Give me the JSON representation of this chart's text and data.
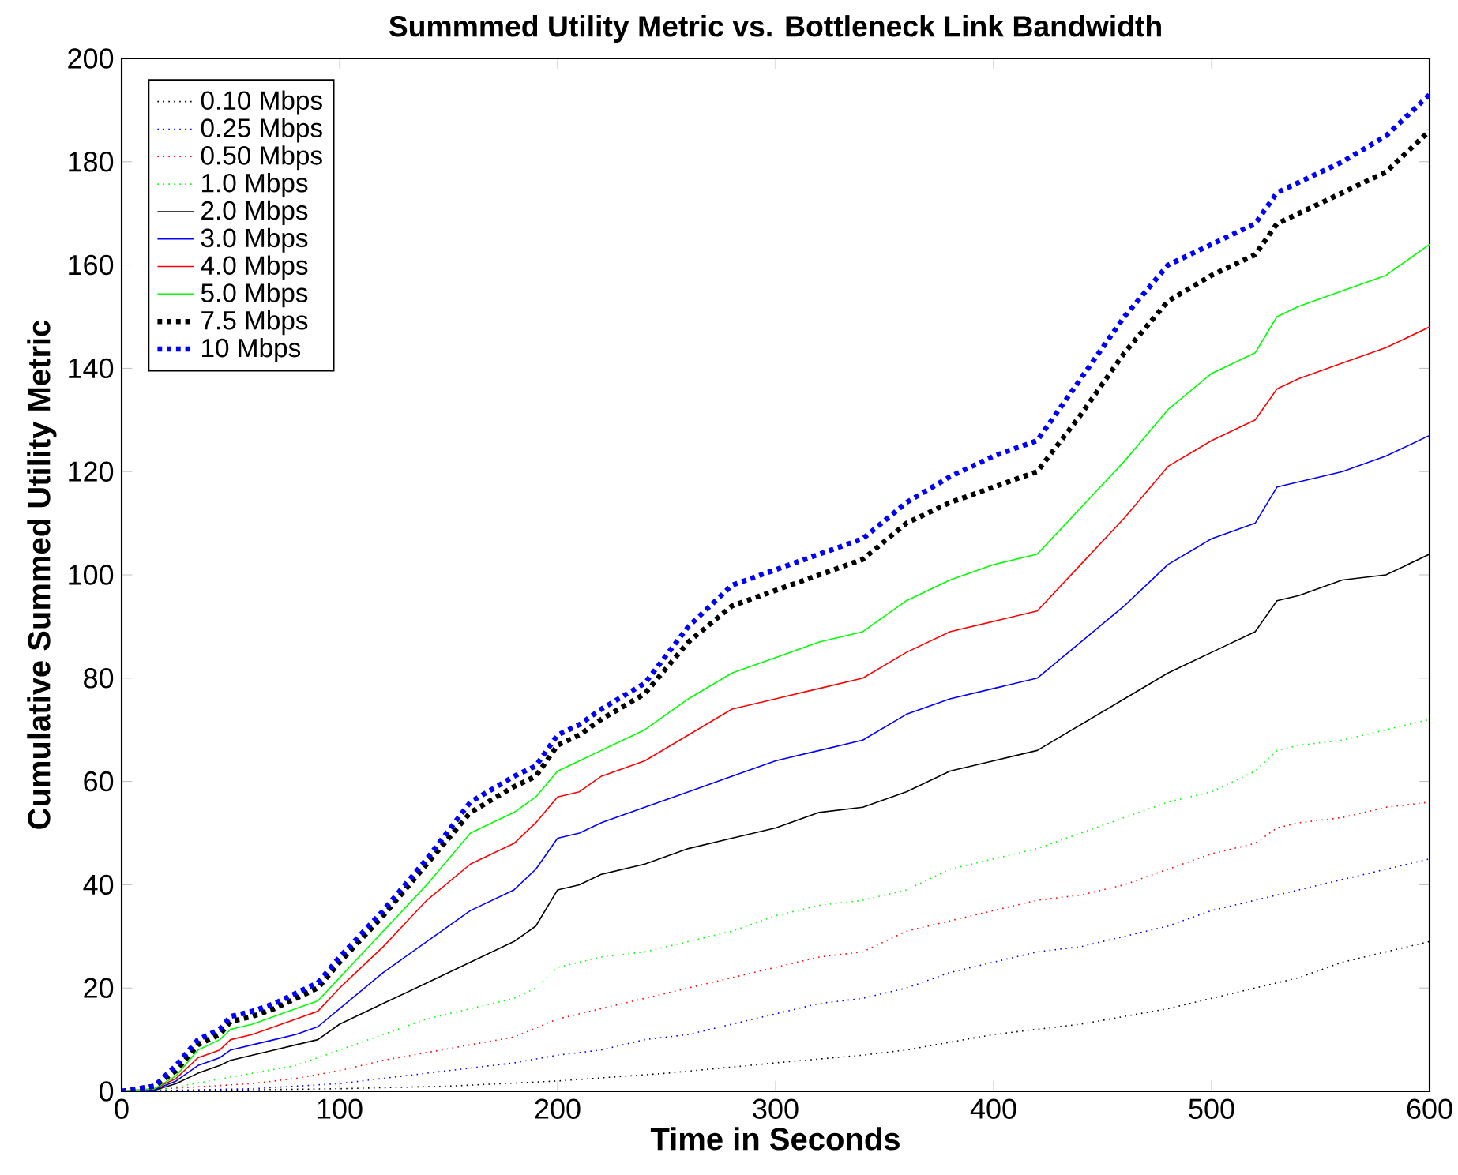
{
  "chart_data": {
    "type": "line",
    "title": "Summmed Utility Metric vs. Bottleneck Link Bandwidth",
    "xlabel": "Time in Seconds",
    "ylabel": "Cumulative Summed Utility Metric",
    "xlim": [
      0,
      600
    ],
    "ylim": [
      0,
      200
    ],
    "xticks": [
      0,
      100,
      200,
      300,
      400,
      500,
      600
    ],
    "yticks": [
      0,
      20,
      40,
      60,
      80,
      100,
      120,
      140,
      160,
      180,
      200
    ],
    "grid": false,
    "legend": "top left",
    "marker": "none",
    "series": [
      {
        "name": "0.10 Mbps",
        "color": "#000000",
        "line_style": "dotted",
        "x": [
          0,
          100,
          150,
          200,
          250,
          300,
          340,
          360,
          400,
          440,
          480,
          500,
          520,
          540,
          560,
          580,
          600
        ],
        "values": [
          0,
          0.5,
          1,
          2,
          3.5,
          5.5,
          7,
          8,
          11,
          13,
          16,
          18,
          20,
          22,
          25,
          27,
          29
        ]
      },
      {
        "name": "0.25 Mbps",
        "color": "#0000ff",
        "line_style": "dotted",
        "x": [
          0,
          60,
          80,
          100,
          120,
          140,
          160,
          180,
          200,
          220,
          240,
          260,
          280,
          300,
          320,
          340,
          360,
          380,
          400,
          420,
          440,
          460,
          480,
          500,
          520,
          540,
          560,
          580,
          600
        ],
        "values": [
          0,
          0.5,
          1,
          1.5,
          2.5,
          3.5,
          4.5,
          5.5,
          7,
          8,
          10,
          11,
          13,
          15,
          17,
          18,
          20,
          23,
          25,
          27,
          28,
          30,
          32,
          35,
          37,
          39,
          41,
          43,
          45
        ]
      },
      {
        "name": "0.50 Mbps",
        "color": "#ff0000",
        "line_style": "dotted",
        "x": [
          0,
          40,
          60,
          80,
          100,
          120,
          140,
          160,
          180,
          200,
          220,
          240,
          260,
          280,
          300,
          320,
          340,
          360,
          380,
          400,
          420,
          440,
          460,
          480,
          500,
          520,
          530,
          540,
          560,
          580,
          600
        ],
        "values": [
          0,
          1,
          1.5,
          2.5,
          4,
          6,
          7.5,
          9,
          10.5,
          14,
          16,
          18,
          20,
          22,
          24,
          26,
          27,
          31,
          33,
          35,
          37,
          38,
          40,
          43,
          46,
          48,
          51,
          52,
          53,
          55,
          56
        ]
      },
      {
        "name": "1.0 Mbps",
        "color": "#00ff00",
        "line_style": "dotted",
        "x": [
          0,
          20,
          40,
          60,
          80,
          100,
          120,
          140,
          160,
          180,
          190,
          200,
          220,
          240,
          260,
          280,
          300,
          320,
          340,
          360,
          380,
          400,
          420,
          440,
          460,
          480,
          500,
          520,
          530,
          540,
          560,
          580,
          600
        ],
        "values": [
          0,
          0.5,
          2,
          3.5,
          5,
          8,
          11,
          14,
          16,
          18,
          20,
          24,
          26,
          27,
          29,
          31,
          34,
          36,
          37,
          39,
          43,
          45,
          47,
          50,
          53,
          56,
          58,
          62,
          66,
          67,
          68,
          70,
          72
        ]
      },
      {
        "name": "2.0 Mbps",
        "color": "#000000",
        "line_style": "solid",
        "x": [
          0,
          15,
          25,
          35,
          45,
          50,
          60,
          70,
          80,
          90,
          100,
          120,
          140,
          160,
          180,
          190,
          200,
          210,
          220,
          240,
          260,
          280,
          300,
          320,
          340,
          360,
          380,
          400,
          420,
          440,
          460,
          480,
          500,
          520,
          530,
          540,
          560,
          580,
          600
        ],
        "values": [
          0,
          0.2,
          1.5,
          3.5,
          5,
          6,
          7,
          8,
          9,
          10,
          13,
          17,
          21,
          25,
          29,
          32,
          39,
          40,
          42,
          44,
          47,
          49,
          51,
          54,
          55,
          58,
          62,
          64,
          66,
          71,
          76,
          81,
          85,
          89,
          95,
          96,
          99,
          100,
          104
        ]
      },
      {
        "name": "3.0 Mbps",
        "color": "#0000ff",
        "line_style": "solid",
        "x": [
          0,
          15,
          25,
          35,
          45,
          50,
          60,
          70,
          80,
          90,
          100,
          120,
          140,
          160,
          180,
          190,
          200,
          210,
          220,
          240,
          260,
          280,
          300,
          320,
          340,
          360,
          380,
          400,
          420,
          440,
          460,
          480,
          500,
          520,
          530,
          540,
          560,
          580,
          600
        ],
        "values": [
          0,
          0.3,
          2,
          5,
          6.5,
          8,
          9,
          10,
          11,
          12.5,
          16,
          23,
          29,
          35,
          39,
          43,
          49,
          50,
          52,
          55,
          58,
          61,
          64,
          66,
          68,
          73,
          76,
          78,
          80,
          87,
          94,
          102,
          107,
          110,
          117,
          118,
          120,
          123,
          127
        ]
      },
      {
        "name": "4.0 Mbps",
        "color": "#ff0000",
        "line_style": "solid",
        "x": [
          0,
          15,
          25,
          35,
          45,
          50,
          60,
          70,
          80,
          90,
          100,
          120,
          140,
          160,
          180,
          190,
          200,
          210,
          220,
          240,
          260,
          280,
          300,
          320,
          340,
          360,
          380,
          400,
          420,
          440,
          460,
          480,
          500,
          520,
          530,
          540,
          560,
          580,
          600
        ],
        "values": [
          0,
          0.5,
          2.5,
          6.5,
          8,
          10,
          11,
          12.5,
          14,
          15.5,
          20,
          28,
          37,
          44,
          48,
          52,
          57,
          58,
          61,
          64,
          69,
          74,
          76,
          78,
          80,
          85,
          89,
          91,
          93,
          102,
          111,
          121,
          126,
          130,
          136,
          138,
          141,
          144,
          148
        ]
      },
      {
        "name": "5.0 Mbps",
        "color": "#00ff00",
        "line_style": "solid",
        "x": [
          0,
          15,
          25,
          35,
          45,
          50,
          60,
          70,
          80,
          90,
          100,
          120,
          140,
          160,
          180,
          190,
          200,
          210,
          220,
          240,
          260,
          280,
          300,
          320,
          340,
          360,
          380,
          400,
          420,
          440,
          460,
          480,
          500,
          520,
          530,
          540,
          560,
          580,
          600
        ],
        "values": [
          0,
          0.5,
          3,
          8,
          10,
          12,
          13,
          14.5,
          16,
          17.5,
          22,
          31,
          40,
          50,
          54,
          57,
          62,
          64,
          66,
          70,
          76,
          81,
          84,
          87,
          89,
          95,
          99,
          102,
          104,
          113,
          122,
          132,
          139,
          143,
          150,
          152,
          155,
          158,
          164
        ]
      },
      {
        "name": "7.5 Mbps",
        "color": "#000000",
        "line_style": "dashed",
        "x": [
          0,
          15,
          25,
          35,
          45,
          50,
          60,
          70,
          80,
          90,
          100,
          120,
          140,
          160,
          180,
          190,
          200,
          210,
          220,
          240,
          260,
          280,
          300,
          320,
          340,
          360,
          380,
          400,
          420,
          440,
          460,
          480,
          500,
          520,
          530,
          540,
          560,
          580,
          600
        ],
        "values": [
          0,
          1,
          4,
          9,
          11,
          13.5,
          14.5,
          16,
          18,
          20,
          25,
          34,
          44,
          54,
          59,
          61,
          67,
          69,
          72,
          77,
          87,
          94,
          97,
          100,
          103,
          110,
          114,
          117,
          120,
          131,
          143,
          153,
          158,
          162,
          168,
          170,
          174,
          178,
          186
        ]
      },
      {
        "name": "10 Mbps",
        "color": "#0000ff",
        "line_style": "dashed",
        "x": [
          0,
          15,
          25,
          35,
          45,
          50,
          60,
          70,
          80,
          90,
          100,
          120,
          140,
          160,
          180,
          190,
          200,
          210,
          220,
          240,
          260,
          280,
          300,
          320,
          340,
          360,
          380,
          400,
          420,
          440,
          460,
          480,
          500,
          520,
          530,
          540,
          560,
          580,
          600
        ],
        "values": [
          0,
          1,
          5,
          10,
          12,
          14.5,
          15.5,
          17,
          19,
          21,
          26,
          35,
          45,
          56,
          61,
          63,
          69,
          71,
          74,
          79,
          90,
          98,
          101,
          104,
          107,
          114,
          119,
          123,
          126,
          138,
          150,
          160,
          164,
          168,
          174,
          176,
          180,
          185,
          193
        ]
      }
    ]
  }
}
